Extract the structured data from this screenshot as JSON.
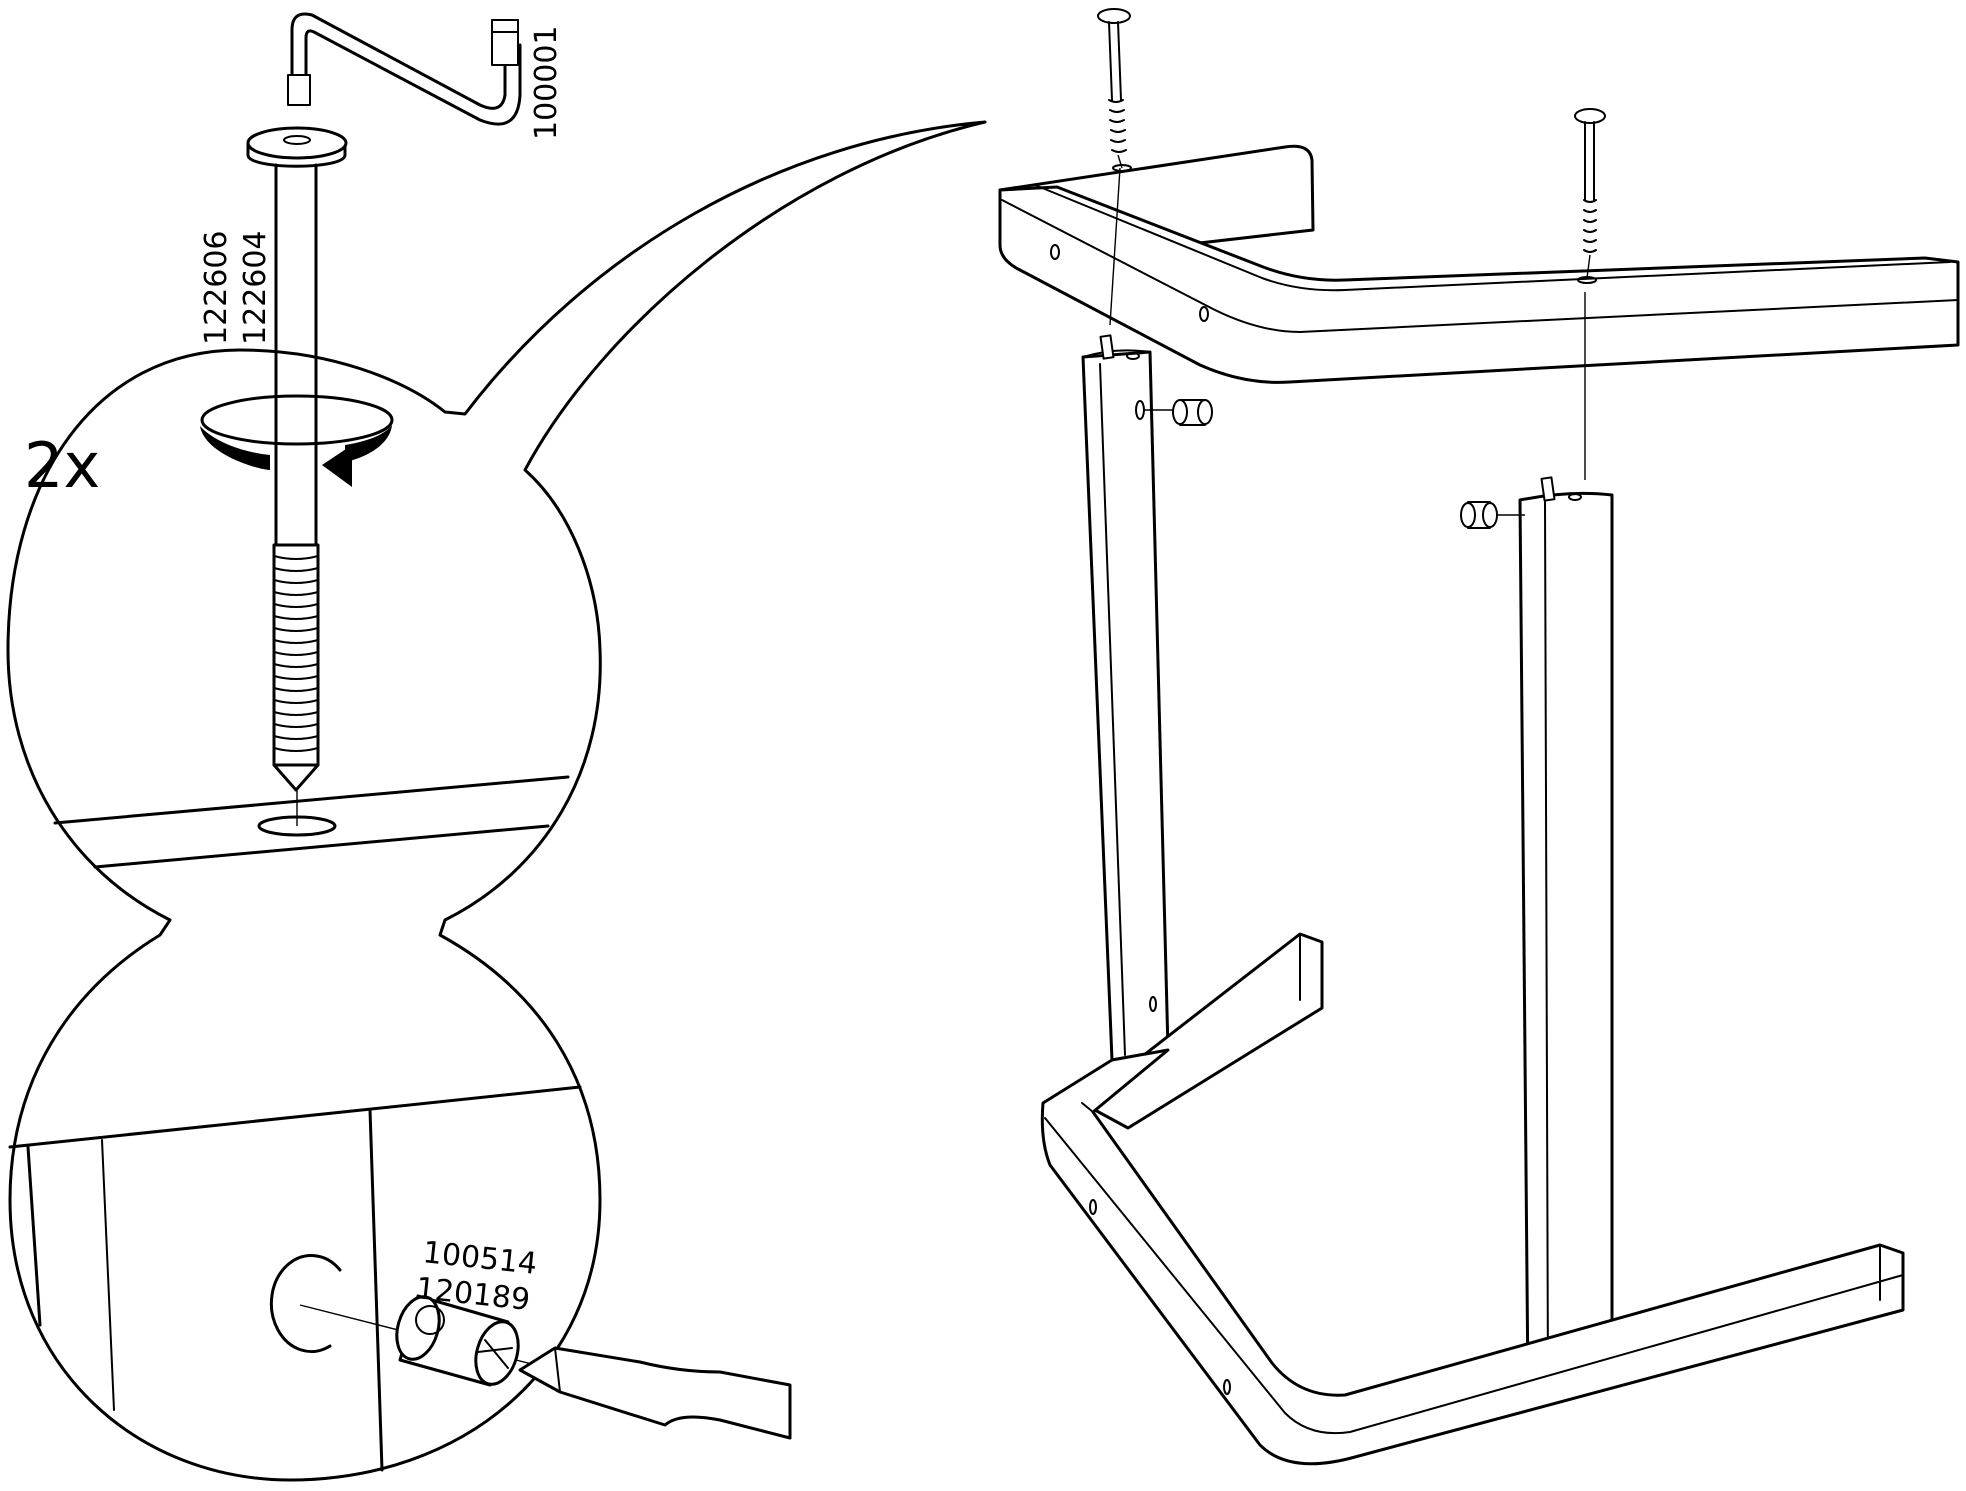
{
  "diagram": {
    "quantity_label": "2x",
    "part_numbers": {
      "allen_key": "100001",
      "bolt_top": "122606",
      "bolt_bottom": "122604",
      "barrel_nut_top": "100514",
      "barrel_nut_bottom": "120189"
    },
    "icons": {
      "rotation": "clockwise-rotation-icon",
      "allen_key": "allen-key-icon",
      "screwdriver": "flat-screwdriver-icon"
    }
  }
}
